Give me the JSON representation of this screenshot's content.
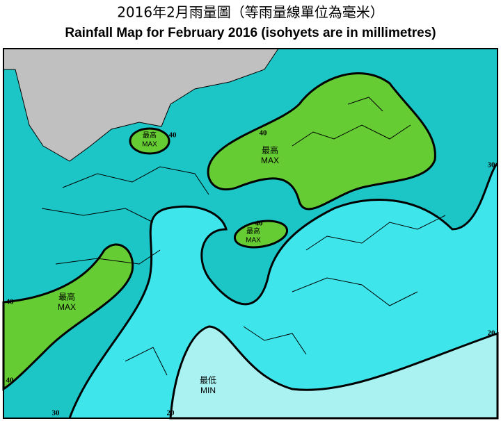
{
  "header": {
    "title_zh": "2016年2月雨量圖（等雨量線單位為毫米）",
    "title_en": "Rainfall Map for February 2016 (isohyets are in millimetres)"
  },
  "extremes": [
    {
      "zh": "最高",
      "en": "MAX"
    },
    {
      "zh": "最高",
      "en": "MAX"
    },
    {
      "zh": "最高",
      "en": "MAX"
    },
    {
      "zh": "最高",
      "en": "MAX"
    },
    {
      "zh": "最低",
      "en": "MIN"
    }
  ],
  "isohyet_labels": [
    "40",
    "40",
    "40",
    "40",
    "40",
    "30",
    "30",
    "20",
    "20"
  ]
}
